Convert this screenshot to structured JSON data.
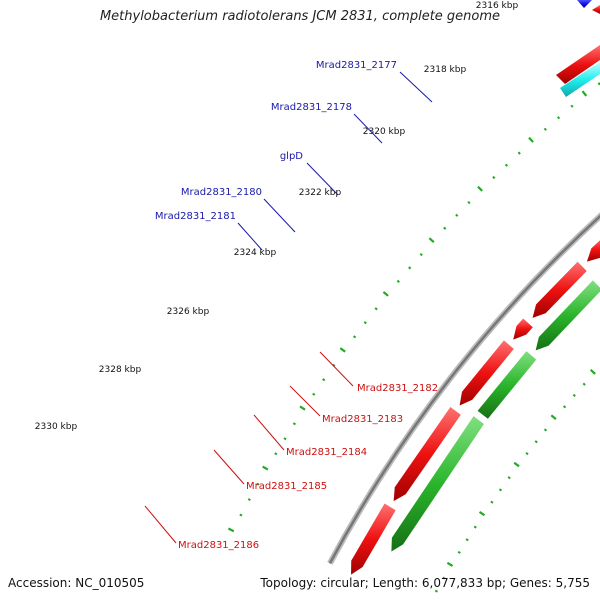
{
  "title": "Methylobacterium radiotolerans JCM 2831, complete genome",
  "footer": {
    "accession": "Accession: NC_010505",
    "summary": "Topology: circular; Length: 6,077,833 bp; Genes: 5,755"
  },
  "scale_ticks": [
    "2316 kbp",
    "2318 kbp",
    "2320 kbp",
    "2322 kbp",
    "2324 kbp",
    "2326 kbp",
    "2328 kbp",
    "2330 kbp"
  ],
  "genes_forward": [
    "Mrad2831_2177",
    "Mrad2831_2178",
    "glpD",
    "Mrad2831_2180",
    "Mrad2831_2181"
  ],
  "genes_reverse": [
    "Mrad2831_2182",
    "Mrad2831_2183",
    "Mrad2831_2184",
    "Mrad2831_2185",
    "Mrad2831_2186"
  ],
  "colors": {
    "forward_label": "#1a1aaa",
    "reverse_label": "#cc1111",
    "cds_blue": "#1515e0",
    "cds_cyan": "#22e8ee",
    "cds_teal": "#10b0b0",
    "cds_red": "#ee1111",
    "cds_green": "#2bb52b",
    "cds_orange": "#ee8a10",
    "cds_purple": "#7060d0",
    "backbone": "#888888",
    "tick": "#22aa22"
  }
}
